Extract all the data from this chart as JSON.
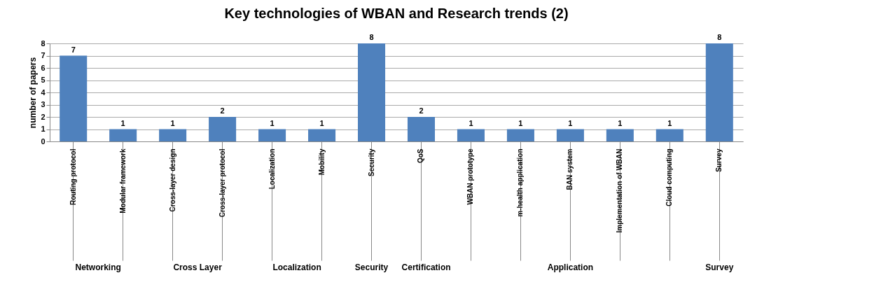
{
  "chart_data": {
    "type": "bar",
    "title": "Key technologies of WBAN and Research trends (2)",
    "ylabel": "number of papers",
    "categories": [
      "Routing protocol",
      "Modular framework",
      "Cross-layer design",
      "Cross-layer protocol",
      "Localization",
      "Mobility",
      "Security",
      "QoS",
      "WBAN prototype",
      "m-health application",
      "BAN system",
      "Implementation of WBAN",
      "Cloud computing",
      "Survey"
    ],
    "values": [
      7,
      1,
      1,
      2,
      1,
      1,
      8,
      2,
      1,
      1,
      1,
      1,
      1,
      8
    ],
    "color": "#4f81bd",
    "ylim": [
      0,
      8
    ],
    "yticks": [
      0,
      1,
      2,
      3,
      4,
      5,
      6,
      7,
      8
    ],
    "grid": "y",
    "data_labels": true,
    "annotations": [
      "Networking",
      "Cross Layer",
      "Localization",
      "Security",
      "Certification",
      "Application",
      "Survey"
    ]
  }
}
